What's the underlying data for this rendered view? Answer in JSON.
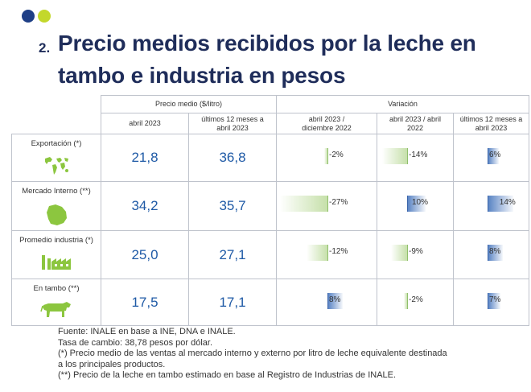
{
  "colors": {
    "dot1": "#1f3f86",
    "dot2": "#c3d82c",
    "title": "#1f2d5a",
    "value": "#1f5aa6",
    "neg_bar": "#c6e0aa",
    "pos_bar": "#5a84c4",
    "icon": "#8cc63f"
  },
  "title": {
    "number": "2.",
    "line1": "Precio medios recibidos por la leche en",
    "line2": "tambo e industria en pesos"
  },
  "table": {
    "group_headers": {
      "precio": "Precio medio ($/litro)",
      "variacion": "Variación"
    },
    "col_headers": {
      "c1": "abril 2023",
      "c2a": "últimos 12 meses a",
      "c2b": "abril 2023",
      "c3a": "abril 2023 /",
      "c3b": "diciembre 2022",
      "c4a": "abril 2023 / abril",
      "c4b": "2022",
      "c5a": "últimos 12 meses a",
      "c5b": "abril 2023"
    },
    "rows": [
      {
        "label": "Exportación (*)",
        "icon": "world-map-icon",
        "v1": "21,8",
        "v2": "36,8",
        "var": [
          {
            "text": "-2%",
            "pct": -2
          },
          {
            "text": "-14%",
            "pct": -14
          },
          {
            "text": "6%",
            "pct": 6
          }
        ]
      },
      {
        "label": "Mercado Interno (**)",
        "icon": "uruguay-map-icon",
        "v1": "34,2",
        "v2": "35,7",
        "var": [
          {
            "text": "-27%",
            "pct": -27
          },
          {
            "text": "10%",
            "pct": 10
          },
          {
            "text": "14%",
            "pct": 14
          }
        ]
      },
      {
        "label": "Promedio industria (*)",
        "icon": "factory-icon",
        "v1": "25,0",
        "v2": "27,1",
        "var": [
          {
            "text": "-12%",
            "pct": -12
          },
          {
            "text": "-9%",
            "pct": -9
          },
          {
            "text": "8%",
            "pct": 8
          }
        ]
      },
      {
        "label": "En tambo (**)",
        "icon": "cow-icon",
        "v1": "17,5",
        "v2": "17,1",
        "var": [
          {
            "text": "8%",
            "pct": 8
          },
          {
            "text": "-2%",
            "pct": -2
          },
          {
            "text": "7%",
            "pct": 7
          }
        ]
      }
    ]
  },
  "footnotes": [
    "Fuente: INALE en base a INE, DNA e INALE.",
    "Tasa de cambio: 38,78 pesos por dólar.",
    "(*) Precio medio de las ventas al mercado interno y externo por litro de leche equivalente destinada",
    "a los principales productos.",
    "(**) Precio de la leche en tambo estimado en base al Registro de Industrias de INALE."
  ]
}
